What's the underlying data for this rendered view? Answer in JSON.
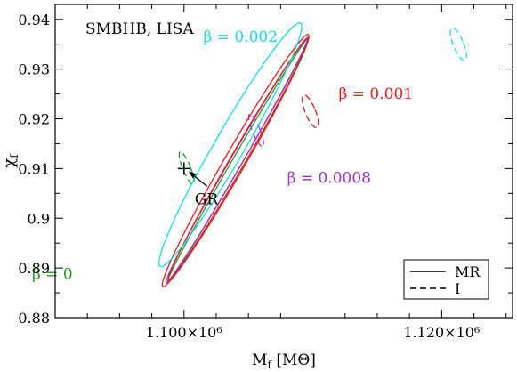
{
  "chart_data": {
    "type": "scatter",
    "title": "",
    "annotation": "SMBHB, LISA",
    "xlabel": "M_f [M_Θ]",
    "ylabel": "χ_f",
    "xlim": [
      1090000,
      1125500
    ],
    "ylim": [
      0.88,
      0.943
    ],
    "x_ticks": [
      {
        "value": 1100000,
        "label": "1.100×10⁶"
      },
      {
        "value": 1120000,
        "label": "1.120×10⁶"
      }
    ],
    "y_ticks": [
      {
        "value": 0.88,
        "label": "0.88"
      },
      {
        "value": 0.89,
        "label": "0.89"
      },
      {
        "value": 0.9,
        "label": "0.9"
      },
      {
        "value": 0.91,
        "label": "0.91"
      },
      {
        "value": 0.92,
        "label": "0.92"
      },
      {
        "value": 0.93,
        "label": "0.93"
      },
      {
        "value": 0.94,
        "label": "0.94"
      }
    ],
    "gr_point": {
      "x": 1100000,
      "y": 0.91,
      "label": "GR"
    },
    "legend": {
      "position": "bottom-right",
      "entries": [
        {
          "label": "MR",
          "style": "solid"
        },
        {
          "label": "I",
          "style": "dashed"
        }
      ]
    },
    "series": [
      {
        "name": "β = 0",
        "color": "#1f9e1f",
        "label_anchor": {
          "x": 1088200,
          "y": 0.8878
        },
        "mr_ellipses": [
          {
            "cx": 1104200,
            "cy": 0.9117,
            "a": 1100000,
            "b": 0.001,
            "angle_deg": 60.0
          }
        ],
        "i_ellipse": {
          "cx": 1100200,
          "cy": 0.9101,
          "rx": 30000,
          "ry": 0.0035,
          "angle_deg": 22.0
        }
      },
      {
        "name": "β = 0.0008",
        "color": "#9b30c8",
        "label_anchor": {
          "x": 1108000,
          "y": 0.9071
        },
        "mr_ellipses": [
          {
            "cx": 1104100,
            "cy": 0.9117,
            "a": 1100000,
            "b": 0.0012,
            "angle_deg": 60.0
          }
        ],
        "i_ellipse": {
          "cx": 1105600,
          "cy": 0.9177,
          "rx": 30000,
          "ry": 0.0035,
          "angle_deg": 22.0
        }
      },
      {
        "name": "β = 0.001",
        "color": "#e11c1c",
        "label_anchor": {
          "x": 1112000,
          "y": 0.924
        },
        "mr_ellipses": [
          {
            "cx": 1104000,
            "cy": 0.9116,
            "a": 1130000,
            "b": 0.0021,
            "angle_deg": 60.0
          },
          {
            "cx": 1104200,
            "cy": 0.9118,
            "a": 1080000,
            "b": 0.0015,
            "angle_deg": 60.0
          }
        ],
        "i_ellipse": {
          "cx": 1109800,
          "cy": 0.9215,
          "rx": 40000,
          "ry": 0.0035,
          "angle_deg": 22.0
        }
      },
      {
        "name": "β = 0.002",
        "color": "#19d9ee",
        "label_anchor": {
          "x": 1101500,
          "y": 0.9355
        },
        "mr_ellipses": [
          {
            "cx": 1103600,
            "cy": 0.9148,
            "a": 1090000,
            "b": 0.003,
            "angle_deg": 60.0
          }
        ],
        "i_ellipse": {
          "cx": 1121300,
          "cy": 0.935,
          "rx": 40000,
          "ry": 0.0035,
          "angle_deg": 22.0
        }
      }
    ]
  }
}
